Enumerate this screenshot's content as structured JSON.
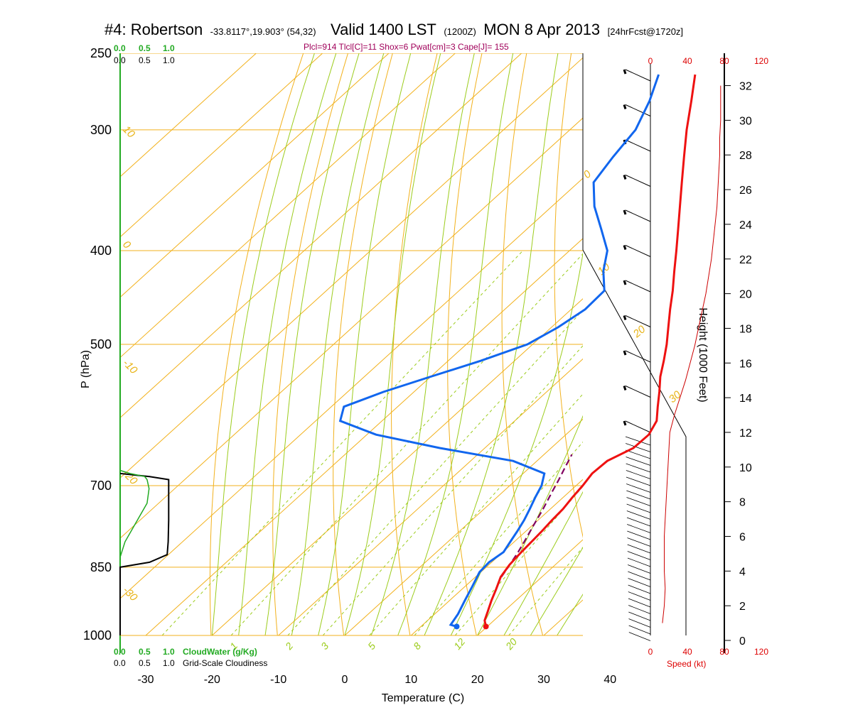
{
  "header": {
    "station": "#4: Robertson",
    "coords": "-33.8117°,19.903° (54,32)",
    "valid": "Valid 1400 LST",
    "zulu": "(1200Z)",
    "date": "MON 8 Apr 2013",
    "forecast": "[24hrFcst@1720z]"
  },
  "params_line": "Plcl=914 Tlcl[C]=11 Shox=6 Pwat[cm]=3 Cape[J]= 155",
  "cloud_scale": {
    "top_green": [
      "0.0",
      "0.5",
      "1.0"
    ],
    "top_black": [
      "0.0",
      "0.5",
      "1.0"
    ],
    "bottom_green": [
      "0.0",
      "0.5",
      "1.0"
    ],
    "bottom_black": [
      "0.0",
      "0.5",
      "1.0"
    ],
    "cloudwater_label": "CloudWater (g/Kg)",
    "cloudiness_label": "Grid-Scale Cloudiness"
  },
  "speed_scale": {
    "ticks": [
      "0",
      "40",
      "80",
      "120"
    ],
    "label": "Speed (kt)"
  },
  "colors": {
    "temperature": "#ee1111",
    "dewpoint": "#1166ee",
    "parcel": "#800060",
    "isobar": "#f2b11c",
    "dry_adiabat": "#f2b11c",
    "moist_adiabat": "#9ccc1c",
    "mixing_ratio": "#9ccc1c",
    "cloudwater": "#22aa22",
    "cloudiness": "#000000",
    "wind_speed": "#cc0000"
  },
  "chart_data": {
    "type": "line",
    "chart_kind": "skew-T log-P sounding",
    "xlabel": "Temperature (C)",
    "ylabel": "P (hPa)",
    "y2label": "Height (1000 Feet)",
    "pressure_ticks": [
      250,
      300,
      400,
      500,
      700,
      850,
      1000
    ],
    "temperature_ticks": [
      -30,
      -20,
      -10,
      0,
      10,
      20,
      30,
      40
    ],
    "height_ticks": [
      0,
      2,
      4,
      6,
      8,
      10,
      12,
      14,
      16,
      18,
      20,
      22,
      24,
      26,
      28,
      30,
      32
    ],
    "height_ticks_ft": [
      0,
      2000,
      4000,
      6000,
      8000,
      10000,
      12000,
      14000,
      16000,
      18000,
      20000,
      22000,
      24000,
      26000,
      28000,
      30000,
      32000
    ],
    "plim_hpa": [
      250,
      1000
    ],
    "xlim_bottom_C": [
      -33,
      47
    ],
    "dry_adiabat_labels": [
      "10",
      "0",
      "-10",
      "-20",
      "-30"
    ],
    "moist_adiabat_labels": [
      "0",
      "10",
      "20",
      "30"
    ],
    "mixing_ratio_labels": [
      "1",
      "2",
      "3",
      "5",
      "8",
      "12",
      "20"
    ],
    "mixing_ratio_values_gkg": [
      1,
      2,
      3,
      5,
      8,
      12,
      20
    ],
    "series": [
      {
        "name": "Temperature",
        "p_hpa": [
          979,
          965,
          945,
          920,
          895,
          870,
          845,
          822,
          800,
          780,
          760,
          740,
          720,
          700,
          680,
          660,
          640,
          620,
          600,
          580,
          560,
          540,
          520,
          500,
          480,
          460,
          440,
          420,
          400,
          380,
          360,
          340,
          320,
          300,
          280,
          263
        ],
        "t_c": [
          19.8,
          18.6,
          17.6,
          16.3,
          15.1,
          13.8,
          13.1,
          12.8,
          12.6,
          12.4,
          12.1,
          11.9,
          11.4,
          11.0,
          10.4,
          10.6,
          12.4,
          12.5,
          11.4,
          9.2,
          7.0,
          4.6,
          2.5,
          0.2,
          -2.4,
          -5.1,
          -7.8,
          -10.8,
          -13.9,
          -17.2,
          -20.7,
          -24.4,
          -28.3,
          -32.4,
          -36.5,
          -40.3
        ]
      },
      {
        "name": "Dewpoint",
        "p_hpa": [
          979,
          975,
          950,
          920,
          890,
          860,
          840,
          820,
          800,
          780,
          760,
          740,
          720,
          700,
          680,
          660,
          640,
          620,
          600,
          580,
          560,
          540,
          520,
          500,
          480,
          460,
          440,
          420,
          400,
          380,
          360,
          340,
          320,
          300,
          280,
          263
        ],
        "t_c": [
          15.4,
          14.2,
          13.5,
          12.3,
          11.1,
          9.8,
          9.6,
          10.1,
          9.4,
          8.7,
          7.9,
          6.9,
          5.8,
          4.8,
          3.2,
          -3.6,
          -16.8,
          -28.6,
          -36.3,
          -38.1,
          -34.6,
          -30.0,
          -25.1,
          -20.8,
          -19.0,
          -17.9,
          -18.1,
          -21.5,
          -24.3,
          -28.8,
          -33.6,
          -37.7,
          -39.0,
          -40.1,
          -42.8,
          -45.8
        ]
      },
      {
        "name": "Parcel",
        "p_hpa": [
          870,
          850,
          820,
          800,
          770,
          740,
          710,
          690,
          670,
          650
        ],
        "t_c": [
          13.9,
          13.3,
          12.3,
          11.5,
          10.2,
          8.9,
          7.4,
          6.4,
          5.3,
          4.2
        ]
      }
    ],
    "wind_profile": {
      "height_kft": [
        1,
        2,
        3,
        4,
        5,
        6,
        7,
        8,
        9,
        10,
        11,
        12,
        13,
        14,
        15,
        16,
        17,
        18,
        19,
        20,
        21,
        22,
        23,
        24,
        25,
        26,
        27,
        28,
        29,
        30,
        31,
        32
      ],
      "speed_kt": [
        13,
        15,
        16,
        15,
        15,
        15,
        16,
        17,
        18,
        19,
        20,
        21,
        26,
        32,
        38,
        43,
        48,
        52,
        56,
        60,
        63,
        66,
        68,
        70,
        72,
        73,
        74,
        75,
        75,
        76,
        76,
        76
      ]
    }
  }
}
